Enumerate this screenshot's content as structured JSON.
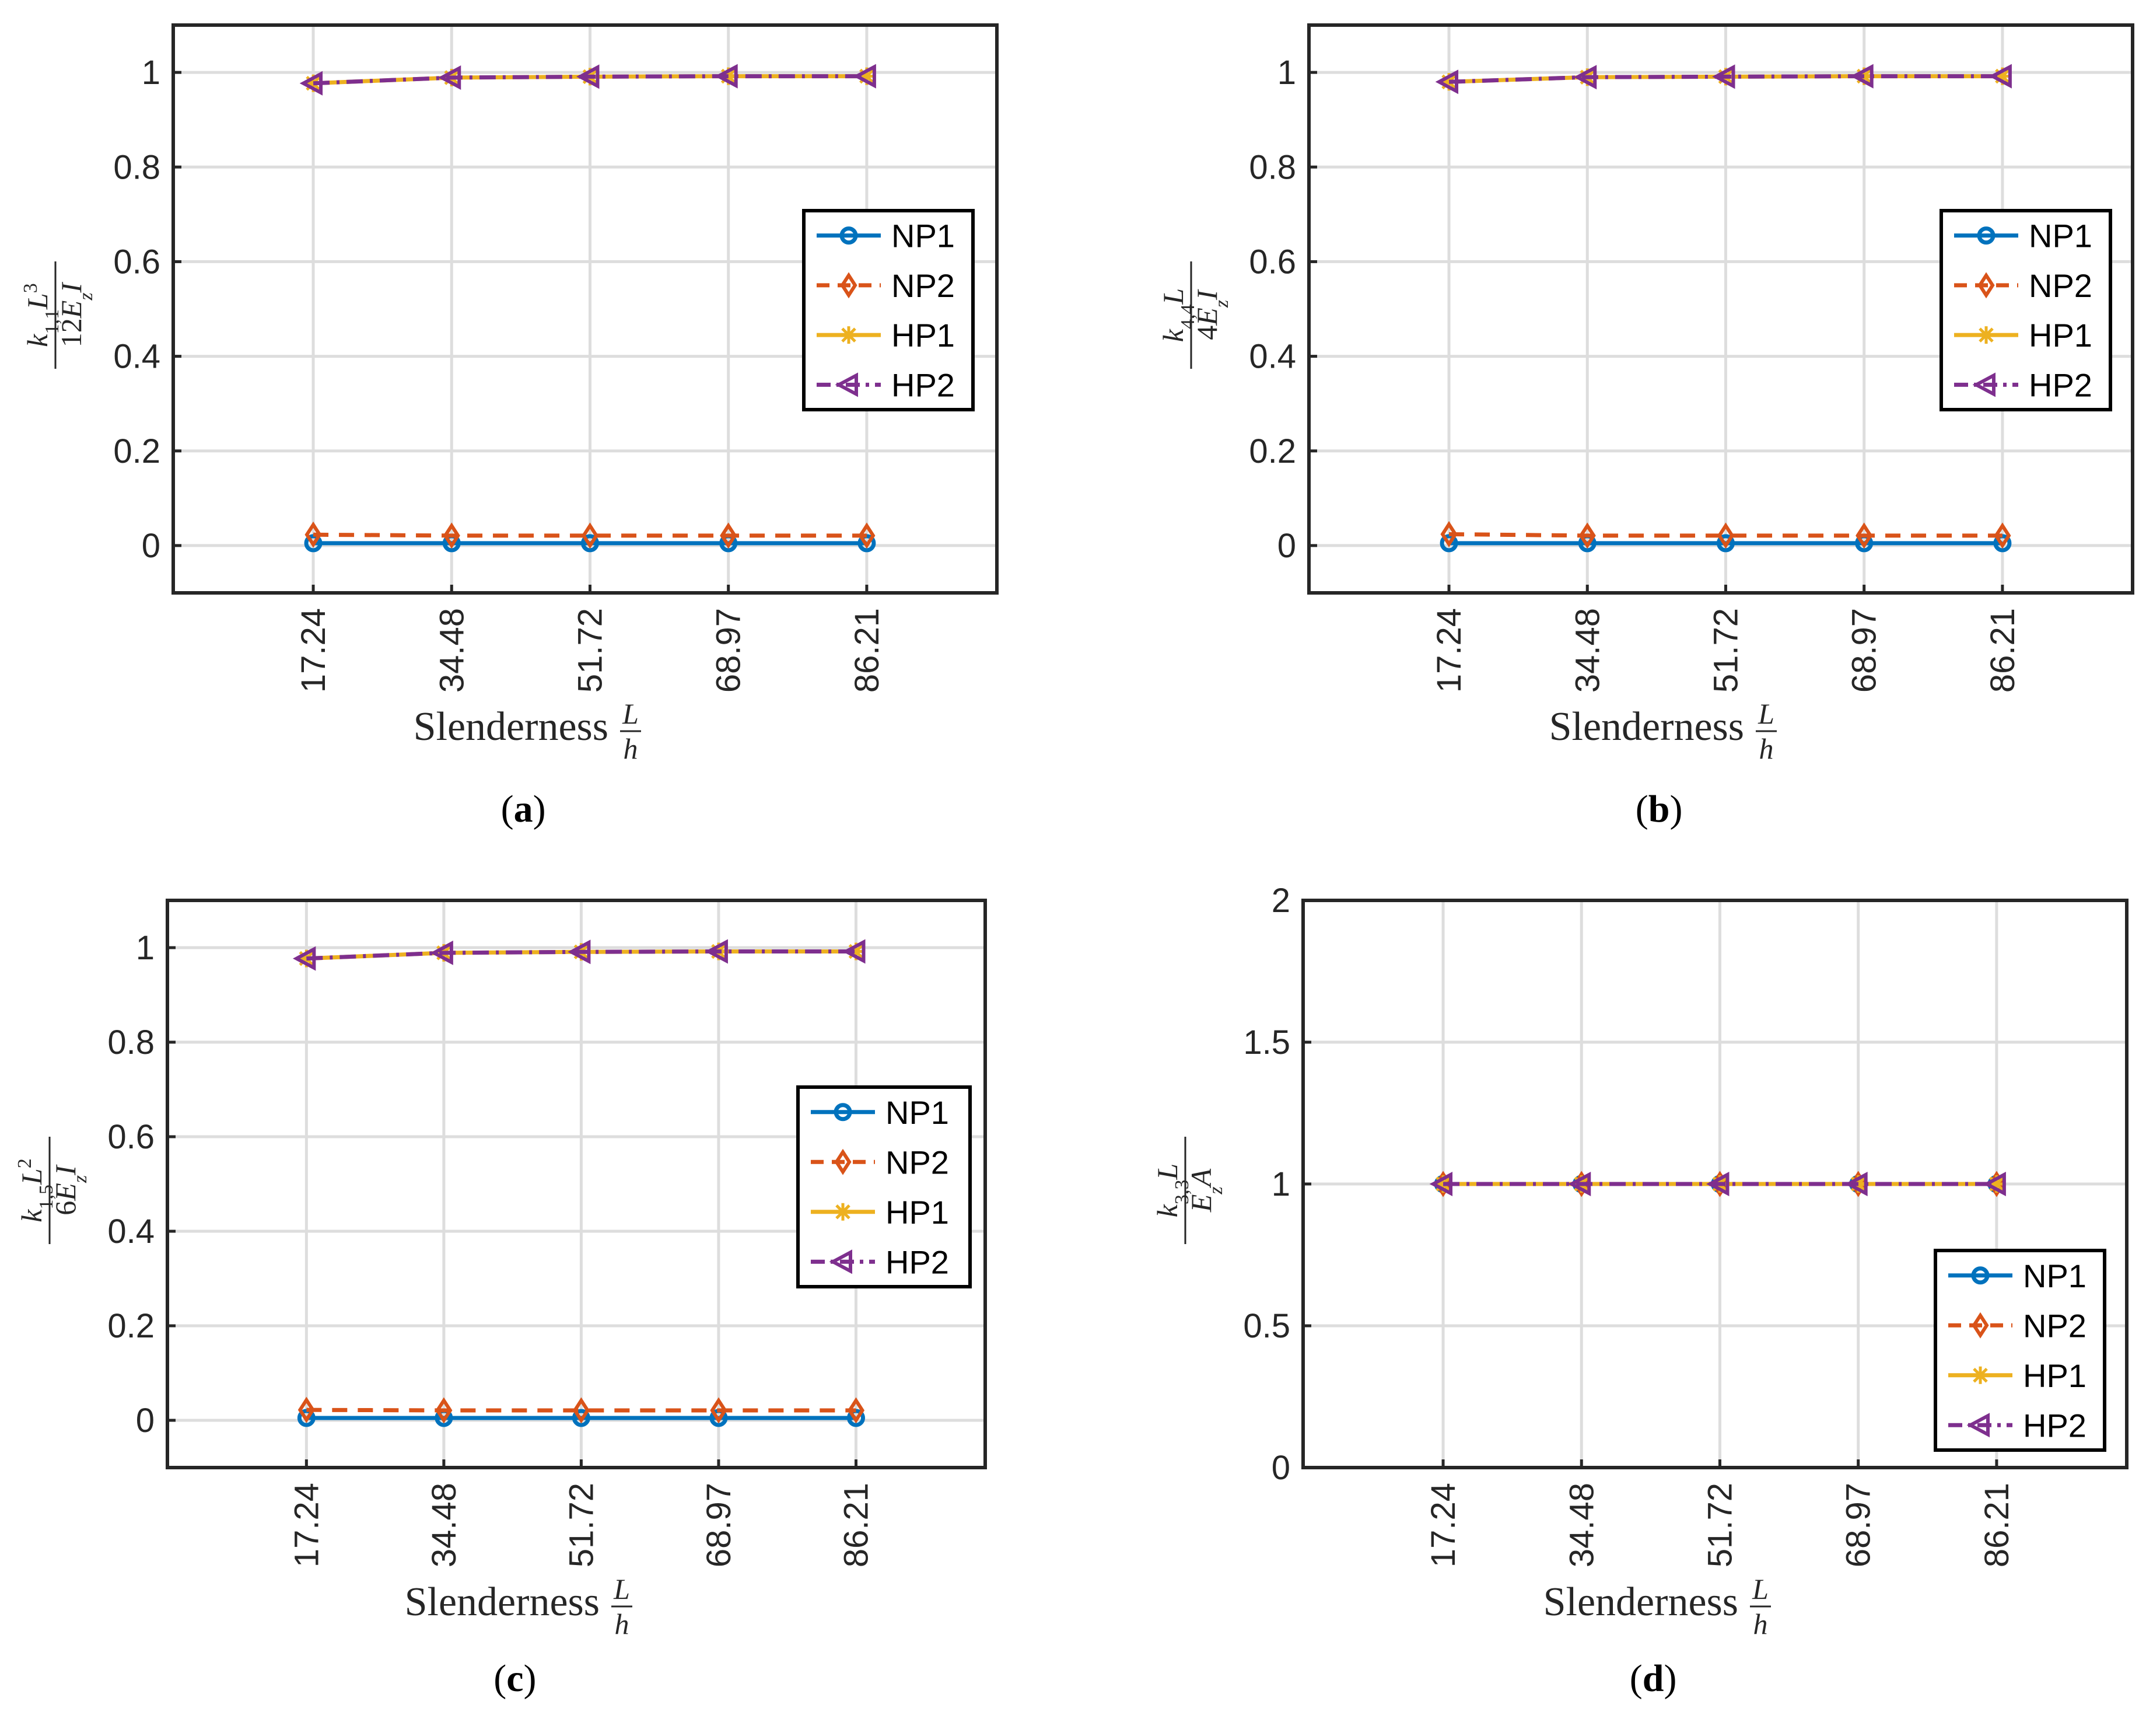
{
  "chart_data": [
    {
      "type": "line",
      "panel_label": {
        "open": "(",
        "letter": "a",
        "close": ")"
      },
      "categories": [
        "17.24",
        "34.48",
        "51.72",
        "68.97",
        "86.21"
      ],
      "x_label": {
        "text": "Slenderness",
        "num": "L",
        "den": "h"
      },
      "y_label": {
        "num": "k1,1L3",
        "den": "12EzI"
      },
      "ylim": [
        -0.1,
        1.1
      ],
      "yticks": [
        "0",
        "0.2",
        "0.4",
        "0.6",
        "0.8",
        "1"
      ],
      "legend": {
        "position": "right-center"
      },
      "series": [
        {
          "name": "NP1",
          "values": [
            0.005,
            0.005,
            0.005,
            0.005,
            0.005
          ]
        },
        {
          "name": "NP2",
          "values": [
            0.023,
            0.021,
            0.021,
            0.021,
            0.021
          ]
        },
        {
          "name": "HP1",
          "values": [
            0.977,
            0.989,
            0.991,
            0.992,
            0.992
          ]
        },
        {
          "name": "HP2",
          "values": [
            0.977,
            0.989,
            0.991,
            0.992,
            0.992
          ]
        }
      ]
    },
    {
      "type": "line",
      "panel_label": {
        "open": "(",
        "letter": "b",
        "close": ")"
      },
      "categories": [
        "17.24",
        "34.48",
        "51.72",
        "68.97",
        "86.21"
      ],
      "x_label": {
        "text": "Slenderness",
        "num": "L",
        "den": "h"
      },
      "y_label": {
        "num": "k4,4L",
        "den": "4EzI"
      },
      "ylim": [
        -0.1,
        1.1
      ],
      "yticks": [
        "0",
        "0.2",
        "0.4",
        "0.6",
        "0.8",
        "1"
      ],
      "legend": {
        "position": "right-center"
      },
      "series": [
        {
          "name": "NP1",
          "values": [
            0.005,
            0.005,
            0.005,
            0.005,
            0.005
          ]
        },
        {
          "name": "NP2",
          "values": [
            0.024,
            0.021,
            0.021,
            0.021,
            0.021
          ]
        },
        {
          "name": "HP1",
          "values": [
            0.98,
            0.99,
            0.991,
            0.992,
            0.992
          ]
        },
        {
          "name": "HP2",
          "values": [
            0.98,
            0.99,
            0.991,
            0.992,
            0.992
          ]
        }
      ]
    },
    {
      "type": "line",
      "panel_label": {
        "open": "(",
        "letter": "c",
        "close": ")"
      },
      "categories": [
        "17.24",
        "34.48",
        "51.72",
        "68.97",
        "86.21"
      ],
      "x_label": {
        "text": "Slenderness",
        "num": "L",
        "den": "h"
      },
      "y_label": {
        "num": "k1,5L2",
        "den": "6EzI"
      },
      "ylim": [
        -0.1,
        1.1
      ],
      "yticks": [
        "0",
        "0.2",
        "0.4",
        "0.6",
        "0.8",
        "1"
      ],
      "legend": {
        "position": "right-center"
      },
      "series": [
        {
          "name": "NP1",
          "values": [
            0.005,
            0.005,
            0.005,
            0.005,
            0.005
          ]
        },
        {
          "name": "NP2",
          "values": [
            0.022,
            0.021,
            0.021,
            0.021,
            0.021
          ]
        },
        {
          "name": "HP1",
          "values": [
            0.977,
            0.989,
            0.991,
            0.992,
            0.992
          ]
        },
        {
          "name": "HP2",
          "values": [
            0.977,
            0.989,
            0.991,
            0.992,
            0.992
          ]
        }
      ]
    },
    {
      "type": "line",
      "panel_label": {
        "open": "(",
        "letter": "d",
        "close": ")"
      },
      "categories": [
        "17.24",
        "34.48",
        "51.72",
        "68.97",
        "86.21"
      ],
      "x_label": {
        "text": "Slenderness",
        "num": "L",
        "den": "h"
      },
      "y_label": {
        "num": "k3,3L",
        "den": "EzA"
      },
      "ylim": [
        0,
        2
      ],
      "yticks": [
        "0",
        "0.5",
        "1",
        "1.5",
        "2"
      ],
      "legend": {
        "position": "bottom-right"
      },
      "series": [
        {
          "name": "NP1",
          "values": [
            1,
            1,
            1,
            1,
            1
          ]
        },
        {
          "name": "NP2",
          "values": [
            1,
            1,
            1,
            1,
            1
          ]
        },
        {
          "name": "HP1",
          "values": [
            1,
            1,
            1,
            1,
            1
          ]
        },
        {
          "name": "HP2",
          "values": [
            1,
            1,
            1,
            1,
            1
          ]
        }
      ]
    }
  ],
  "style": {
    "NP1": {
      "color": "#0072BD",
      "marker": "circle",
      "dash": ""
    },
    "NP2": {
      "color": "#D95319",
      "marker": "diamond",
      "dash": "26,18"
    },
    "HP1": {
      "color": "#EDB120",
      "marker": "star",
      "dash": ""
    },
    "HP2": {
      "color": "#7E2F8E",
      "marker": "triangle-left",
      "dash": "28,12,5,12"
    },
    "grid_color": "#dddddd",
    "axis_color": "#262626"
  }
}
